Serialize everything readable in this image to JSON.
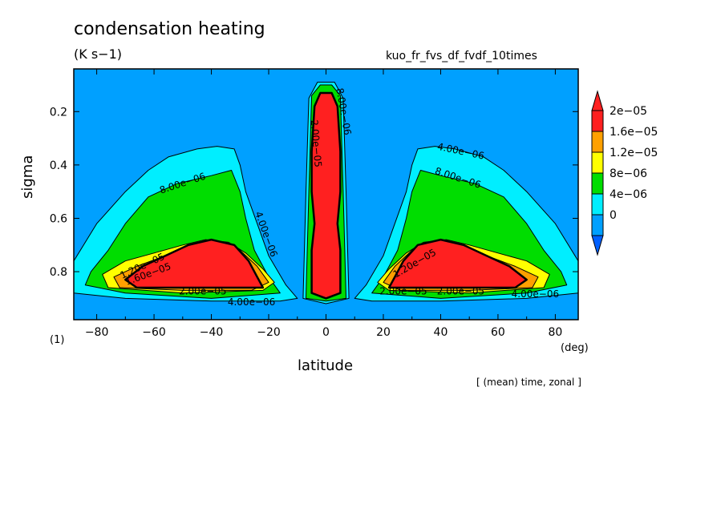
{
  "title": "condensation heating",
  "units": "(K s−1)",
  "run_name": "kuo_fr_fvs_df_fvdf_10times",
  "panel_index": "(1)",
  "x_unit": "(deg)",
  "averaging_note": "[ (mean) time, zonal ]",
  "colors": {
    "bg": "#00a0ff",
    "c4": "#00eeff",
    "c8": "#00dd00",
    "c12": "#ffff00",
    "c16": "#ffa000",
    "c20": "#ff2020"
  },
  "chart_data": {
    "type": "heatmap",
    "xlabel": "latitude",
    "ylabel": "sigma",
    "xlim": [
      -88,
      88
    ],
    "ylim": [
      0.98,
      0.04
    ],
    "xticks": [
      -80,
      -60,
      -40,
      -20,
      0,
      20,
      40,
      60,
      80
    ],
    "xtick_labels": [
      "−80",
      "−60",
      "−40",
      "−20",
      "0",
      "20",
      "40",
      "60",
      "80"
    ],
    "yticks": [
      0.2,
      0.4,
      0.6,
      0.8
    ],
    "ytick_labels": [
      "0.2",
      "0.4",
      "0.6",
      "0.8"
    ],
    "colorbar": {
      "levels": [
        0,
        4e-06,
        8e-06,
        1.2e-05,
        1.6e-05,
        2e-05
      ],
      "labels": [
        "0",
        "4e−06",
        "8e−06",
        "1.2e−05",
        "1.6e−05",
        "2e−05"
      ]
    },
    "regions": [
      {
        "level": "c4",
        "pts": [
          [
            -88,
            0.76
          ],
          [
            -80,
            0.62
          ],
          [
            -70,
            0.5
          ],
          [
            -62,
            0.42
          ],
          [
            -55,
            0.37
          ],
          [
            -45,
            0.34
          ],
          [
            -38,
            0.33
          ],
          [
            -32,
            0.34
          ],
          [
            -30,
            0.4
          ],
          [
            -28,
            0.5
          ],
          [
            -24,
            0.62
          ],
          [
            -20,
            0.74
          ],
          [
            -14,
            0.85
          ],
          [
            -10,
            0.9
          ],
          [
            -16,
            0.91
          ],
          [
            -40,
            0.91
          ],
          [
            -70,
            0.9
          ],
          [
            -88,
            0.88
          ]
        ]
      },
      {
        "level": "c4",
        "pts": [
          [
            88,
            0.76
          ],
          [
            80,
            0.62
          ],
          [
            70,
            0.5
          ],
          [
            62,
            0.42
          ],
          [
            55,
            0.37
          ],
          [
            45,
            0.34
          ],
          [
            38,
            0.33
          ],
          [
            32,
            0.34
          ],
          [
            30,
            0.4
          ],
          [
            28,
            0.5
          ],
          [
            24,
            0.62
          ],
          [
            20,
            0.74
          ],
          [
            14,
            0.85
          ],
          [
            10,
            0.9
          ],
          [
            16,
            0.91
          ],
          [
            40,
            0.91
          ],
          [
            70,
            0.9
          ],
          [
            88,
            0.88
          ]
        ]
      },
      {
        "level": "c4",
        "pts": [
          [
            -8,
            0.9
          ],
          [
            -7,
            0.5
          ],
          [
            -6,
            0.15
          ],
          [
            -3,
            0.09
          ],
          [
            3,
            0.09
          ],
          [
            6,
            0.15
          ],
          [
            7,
            0.5
          ],
          [
            8,
            0.9
          ],
          [
            0,
            0.92
          ]
        ]
      },
      {
        "level": "c8",
        "pts": [
          [
            -82,
            0.8
          ],
          [
            -76,
            0.72
          ],
          [
            -70,
            0.62
          ],
          [
            -62,
            0.52
          ],
          [
            -52,
            0.47
          ],
          [
            -40,
            0.44
          ],
          [
            -33,
            0.42
          ],
          [
            -30,
            0.5
          ],
          [
            -28,
            0.6
          ],
          [
            -25,
            0.72
          ],
          [
            -20,
            0.82
          ],
          [
            -16,
            0.88
          ],
          [
            -40,
            0.9
          ],
          [
            -70,
            0.88
          ],
          [
            -84,
            0.85
          ]
        ]
      },
      {
        "level": "c8",
        "pts": [
          [
            82,
            0.8
          ],
          [
            76,
            0.72
          ],
          [
            70,
            0.62
          ],
          [
            62,
            0.52
          ],
          [
            52,
            0.47
          ],
          [
            40,
            0.44
          ],
          [
            33,
            0.42
          ],
          [
            30,
            0.5
          ],
          [
            28,
            0.6
          ],
          [
            25,
            0.72
          ],
          [
            20,
            0.82
          ],
          [
            16,
            0.88
          ],
          [
            40,
            0.9
          ],
          [
            70,
            0.88
          ],
          [
            84,
            0.85
          ]
        ]
      },
      {
        "level": "c8",
        "pts": [
          [
            -7,
            0.9
          ],
          [
            -6,
            0.5
          ],
          [
            -5,
            0.14
          ],
          [
            -2,
            0.1
          ],
          [
            2,
            0.1
          ],
          [
            5,
            0.14
          ],
          [
            6,
            0.5
          ],
          [
            7,
            0.9
          ],
          [
            0,
            0.91
          ]
        ]
      },
      {
        "level": "c12",
        "pts": [
          [
            -78,
            0.81
          ],
          [
            -70,
            0.76
          ],
          [
            -60,
            0.73
          ],
          [
            -50,
            0.7
          ],
          [
            -42,
            0.68
          ],
          [
            -34,
            0.69
          ],
          [
            -28,
            0.73
          ],
          [
            -22,
            0.79
          ],
          [
            -18,
            0.84
          ],
          [
            -22,
            0.87
          ],
          [
            -50,
            0.88
          ],
          [
            -76,
            0.86
          ]
        ]
      },
      {
        "level": "c12",
        "pts": [
          [
            78,
            0.81
          ],
          [
            70,
            0.76
          ],
          [
            60,
            0.73
          ],
          [
            50,
            0.7
          ],
          [
            42,
            0.68
          ],
          [
            34,
            0.69
          ],
          [
            28,
            0.73
          ],
          [
            22,
            0.79
          ],
          [
            18,
            0.84
          ],
          [
            22,
            0.87
          ],
          [
            50,
            0.88
          ],
          [
            76,
            0.86
          ]
        ]
      },
      {
        "level": "c16",
        "pts": [
          [
            -74,
            0.82
          ],
          [
            -66,
            0.78
          ],
          [
            -56,
            0.74
          ],
          [
            -46,
            0.7
          ],
          [
            -38,
            0.69
          ],
          [
            -30,
            0.72
          ],
          [
            -24,
            0.78
          ],
          [
            -20,
            0.84
          ],
          [
            -26,
            0.87
          ],
          [
            -50,
            0.87
          ],
          [
            -72,
            0.86
          ]
        ]
      },
      {
        "level": "c16",
        "pts": [
          [
            74,
            0.82
          ],
          [
            66,
            0.78
          ],
          [
            56,
            0.74
          ],
          [
            46,
            0.7
          ],
          [
            38,
            0.69
          ],
          [
            30,
            0.72
          ],
          [
            24,
            0.78
          ],
          [
            20,
            0.84
          ],
          [
            26,
            0.87
          ],
          [
            50,
            0.87
          ],
          [
            72,
            0.86
          ]
        ]
      },
      {
        "level": "c20",
        "pts": [
          [
            -70,
            0.83
          ],
          [
            -64,
            0.78
          ],
          [
            -56,
            0.74
          ],
          [
            -48,
            0.7
          ],
          [
            -40,
            0.68
          ],
          [
            -32,
            0.7
          ],
          [
            -27,
            0.76
          ],
          [
            -24,
            0.82
          ],
          [
            -22,
            0.86
          ],
          [
            -40,
            0.86
          ],
          [
            -66,
            0.86
          ]
        ]
      },
      {
        "level": "c20",
        "pts": [
          [
            70,
            0.83
          ],
          [
            64,
            0.78
          ],
          [
            56,
            0.74
          ],
          [
            48,
            0.7
          ],
          [
            40,
            0.68
          ],
          [
            32,
            0.7
          ],
          [
            27,
            0.76
          ],
          [
            24,
            0.82
          ],
          [
            22,
            0.86
          ],
          [
            40,
            0.86
          ],
          [
            66,
            0.86
          ]
        ]
      },
      {
        "level": "c20",
        "pts": [
          [
            -5,
            0.88
          ],
          [
            -5,
            0.72
          ],
          [
            -4,
            0.62
          ],
          [
            -5,
            0.5
          ],
          [
            -5,
            0.35
          ],
          [
            -4,
            0.18
          ],
          [
            -2,
            0.13
          ],
          [
            2,
            0.13
          ],
          [
            4,
            0.18
          ],
          [
            5,
            0.35
          ],
          [
            5,
            0.5
          ],
          [
            4,
            0.62
          ],
          [
            5,
            0.72
          ],
          [
            5,
            0.88
          ],
          [
            0,
            0.9
          ]
        ]
      }
    ],
    "contour_labels": [
      {
        "text": "8.00e−06",
        "x": -50,
        "y": 0.47,
        "angle": -18
      },
      {
        "text": "4.00e−06",
        "x": -21,
        "y": 0.66,
        "angle": 70
      },
      {
        "text": "1.20e−05",
        "x": -64,
        "y": 0.78,
        "angle": -25
      },
      {
        "text": "1.60e−05",
        "x": -62,
        "y": 0.81,
        "angle": -20
      },
      {
        "text": "2.00e−05",
        "x": -43,
        "y": 0.875,
        "angle": 0
      },
      {
        "text": "4.00e−06",
        "x": -26,
        "y": 0.915,
        "angle": 0
      },
      {
        "text": "4.00e−06",
        "x": 47,
        "y": 0.35,
        "angle": 12
      },
      {
        "text": "8.00e−06",
        "x": 46,
        "y": 0.45,
        "angle": 18
      },
      {
        "text": "1.20e−05",
        "x": 31,
        "y": 0.77,
        "angle": -30
      },
      {
        "text": "2.00e−05",
        "x": 47,
        "y": 0.875,
        "angle": 0
      },
      {
        "text": "2.00e−05",
        "x": 27,
        "y": 0.875,
        "angle": 0
      },
      {
        "text": "4.00e−06",
        "x": 73,
        "y": 0.885,
        "angle": 0
      },
      {
        "text": "2.00e−05",
        "x": -3.6,
        "y": 0.32,
        "angle": 85
      },
      {
        "text": "8.00e−06",
        "x": 6,
        "y": 0.2,
        "angle": 80
      }
    ]
  }
}
